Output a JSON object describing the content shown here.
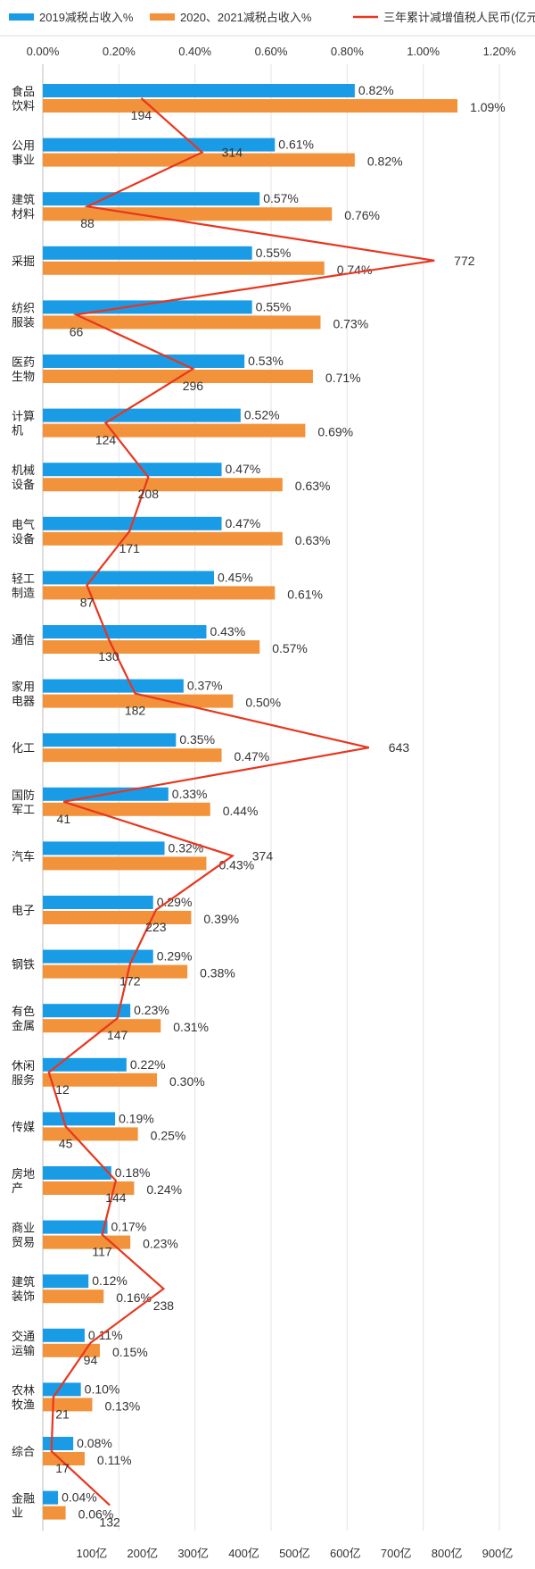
{
  "chart_data": {
    "type": "bar",
    "orientation": "horizontal",
    "legend_position": "top",
    "grid": true,
    "legend": [
      {
        "label": "2019减税占收入%",
        "color": "#1a9be6",
        "kind": "bar"
      },
      {
        "label": "2020、2021减税占收入%",
        "color": "#f2923a",
        "kind": "bar"
      },
      {
        "label": "三年累计减增值税人民币(亿元)",
        "color": "#e8361e",
        "kind": "line"
      }
    ],
    "x_top": {
      "ticks": [
        "0.00%",
        "0.20%",
        "0.40%",
        "0.60%",
        "0.80%",
        "1.00%",
        "1.20%"
      ],
      "range": [
        0,
        1.2
      ],
      "unit": "%"
    },
    "x_bottom": {
      "ticks": [
        "100亿",
        "200亿",
        "300亿",
        "400亿",
        "500亿",
        "600亿",
        "700亿",
        "800亿",
        "900亿"
      ],
      "range": [
        0,
        900
      ],
      "unit": "亿"
    },
    "categories": [
      [
        "食品",
        "饮料"
      ],
      [
        "公用",
        "事业"
      ],
      [
        "建筑",
        "材料"
      ],
      [
        "采掘"
      ],
      [
        "纺织",
        "服装"
      ],
      [
        "医药",
        "生物"
      ],
      [
        "计算",
        "机"
      ],
      [
        "机械",
        "设备"
      ],
      [
        "电气",
        "设备"
      ],
      [
        "轻工",
        "制造"
      ],
      [
        "通信"
      ],
      [
        "家用",
        "电器"
      ],
      [
        "化工"
      ],
      [
        "国防",
        "军工"
      ],
      [
        "汽车"
      ],
      [
        "电子"
      ],
      [
        "钢铁"
      ],
      [
        "有色",
        "金属"
      ],
      [
        "休闲",
        "服务"
      ],
      [
        "传媒"
      ],
      [
        "房地",
        "产"
      ],
      [
        "商业",
        "贸易"
      ],
      [
        "建筑",
        "装饰"
      ],
      [
        "交通",
        "运输"
      ],
      [
        "农林",
        "牧渔"
      ],
      [
        "综合"
      ],
      [
        "金融",
        "业"
      ]
    ],
    "series": [
      {
        "name": "2019减税占收入%",
        "values": [
          0.82,
          0.61,
          0.57,
          0.55,
          0.55,
          0.53,
          0.52,
          0.47,
          0.47,
          0.45,
          0.43,
          0.37,
          0.35,
          0.33,
          0.32,
          0.29,
          0.29,
          0.23,
          0.22,
          0.19,
          0.18,
          0.17,
          0.12,
          0.11,
          0.1,
          0.08,
          0.04
        ],
        "labels": [
          "0.82%",
          "0.61%",
          "0.57%",
          "0.55%",
          "0.55%",
          "0.53%",
          "0.52%",
          "0.47%",
          "0.47%",
          "0.45%",
          "0.43%",
          "0.37%",
          "0.35%",
          "0.33%",
          "0.32%",
          "0.29%",
          "0.29%",
          "0.23%",
          "0.22%",
          "0.19%",
          "0.18%",
          "0.17%",
          "0.12%",
          "0.11%",
          "0.10%",
          "0.08%",
          "0.04%"
        ]
      },
      {
        "name": "2020、2021减税占收入%",
        "values": [
          1.09,
          0.82,
          0.76,
          0.74,
          0.73,
          0.71,
          0.69,
          0.63,
          0.63,
          0.61,
          0.57,
          0.5,
          0.47,
          0.44,
          0.43,
          0.39,
          0.38,
          0.31,
          0.3,
          0.25,
          0.24,
          0.23,
          0.16,
          0.15,
          0.13,
          0.11,
          0.06
        ],
        "labels": [
          "1.09%",
          "0.82%",
          "0.76%",
          "0.74%",
          "0.73%",
          "0.71%",
          "0.69%",
          "0.63%",
          "0.63%",
          "0.61%",
          "0.57%",
          "0.50%",
          "0.47%",
          "0.44%",
          "0.43%",
          "0.39%",
          "0.38%",
          "0.31%",
          "0.30%",
          "0.25%",
          "0.24%",
          "0.23%",
          "0.16%",
          "0.15%",
          "0.13%",
          "0.11%",
          "0.06%"
        ]
      },
      {
        "name": "三年累计减增值税人民币(亿元)",
        "values": [
          194,
          314,
          88,
          772,
          66,
          296,
          124,
          208,
          171,
          87,
          130,
          182,
          643,
          41,
          374,
          223,
          172,
          147,
          12,
          45,
          144,
          117,
          238,
          94,
          21,
          17,
          132
        ],
        "labels": [
          "194",
          "314",
          "88",
          "772",
          "66",
          "296",
          "124",
          "208",
          "171",
          "87",
          "130",
          "182",
          "643",
          "41",
          "374",
          "223",
          "172",
          "147",
          "12",
          "45",
          "144",
          "117",
          "238",
          "94",
          "21",
          "17",
          "132"
        ]
      }
    ]
  }
}
